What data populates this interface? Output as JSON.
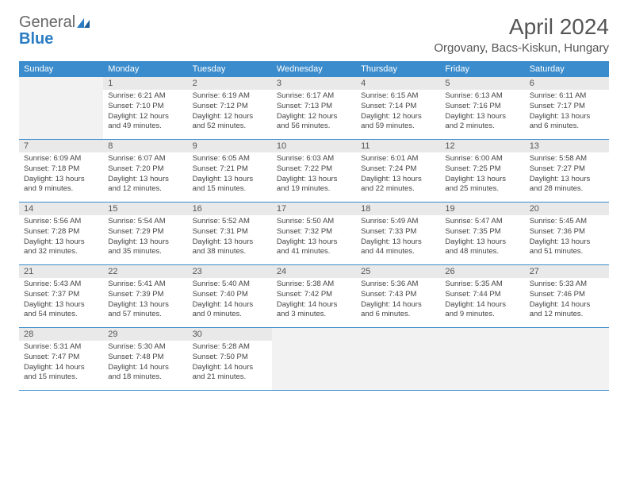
{
  "brand": {
    "text_general": "General",
    "text_blue": "Blue"
  },
  "title": "April 2024",
  "location": "Orgovany, Bacs-Kiskun, Hungary",
  "weekdays": [
    "Sunday",
    "Monday",
    "Tuesday",
    "Wednesday",
    "Thursday",
    "Friday",
    "Saturday"
  ],
  "colors": {
    "header_bg": "#3b8ccc",
    "header_text": "#ffffff",
    "daynum_bg": "#e9e9e9",
    "empty_bg": "#f2f2f2",
    "text": "#444444",
    "rule": "#3b8ccc"
  },
  "weeks": [
    [
      {
        "n": "",
        "empty": true
      },
      {
        "n": "1",
        "sr": "Sunrise: 6:21 AM",
        "ss": "Sunset: 7:10 PM",
        "d1": "Daylight: 12 hours",
        "d2": "and 49 minutes."
      },
      {
        "n": "2",
        "sr": "Sunrise: 6:19 AM",
        "ss": "Sunset: 7:12 PM",
        "d1": "Daylight: 12 hours",
        "d2": "and 52 minutes."
      },
      {
        "n": "3",
        "sr": "Sunrise: 6:17 AM",
        "ss": "Sunset: 7:13 PM",
        "d1": "Daylight: 12 hours",
        "d2": "and 56 minutes."
      },
      {
        "n": "4",
        "sr": "Sunrise: 6:15 AM",
        "ss": "Sunset: 7:14 PM",
        "d1": "Daylight: 12 hours",
        "d2": "and 59 minutes."
      },
      {
        "n": "5",
        "sr": "Sunrise: 6:13 AM",
        "ss": "Sunset: 7:16 PM",
        "d1": "Daylight: 13 hours",
        "d2": "and 2 minutes."
      },
      {
        "n": "6",
        "sr": "Sunrise: 6:11 AM",
        "ss": "Sunset: 7:17 PM",
        "d1": "Daylight: 13 hours",
        "d2": "and 6 minutes."
      }
    ],
    [
      {
        "n": "7",
        "sr": "Sunrise: 6:09 AM",
        "ss": "Sunset: 7:18 PM",
        "d1": "Daylight: 13 hours",
        "d2": "and 9 minutes."
      },
      {
        "n": "8",
        "sr": "Sunrise: 6:07 AM",
        "ss": "Sunset: 7:20 PM",
        "d1": "Daylight: 13 hours",
        "d2": "and 12 minutes."
      },
      {
        "n": "9",
        "sr": "Sunrise: 6:05 AM",
        "ss": "Sunset: 7:21 PM",
        "d1": "Daylight: 13 hours",
        "d2": "and 15 minutes."
      },
      {
        "n": "10",
        "sr": "Sunrise: 6:03 AM",
        "ss": "Sunset: 7:22 PM",
        "d1": "Daylight: 13 hours",
        "d2": "and 19 minutes."
      },
      {
        "n": "11",
        "sr": "Sunrise: 6:01 AM",
        "ss": "Sunset: 7:24 PM",
        "d1": "Daylight: 13 hours",
        "d2": "and 22 minutes."
      },
      {
        "n": "12",
        "sr": "Sunrise: 6:00 AM",
        "ss": "Sunset: 7:25 PM",
        "d1": "Daylight: 13 hours",
        "d2": "and 25 minutes."
      },
      {
        "n": "13",
        "sr": "Sunrise: 5:58 AM",
        "ss": "Sunset: 7:27 PM",
        "d1": "Daylight: 13 hours",
        "d2": "and 28 minutes."
      }
    ],
    [
      {
        "n": "14",
        "sr": "Sunrise: 5:56 AM",
        "ss": "Sunset: 7:28 PM",
        "d1": "Daylight: 13 hours",
        "d2": "and 32 minutes."
      },
      {
        "n": "15",
        "sr": "Sunrise: 5:54 AM",
        "ss": "Sunset: 7:29 PM",
        "d1": "Daylight: 13 hours",
        "d2": "and 35 minutes."
      },
      {
        "n": "16",
        "sr": "Sunrise: 5:52 AM",
        "ss": "Sunset: 7:31 PM",
        "d1": "Daylight: 13 hours",
        "d2": "and 38 minutes."
      },
      {
        "n": "17",
        "sr": "Sunrise: 5:50 AM",
        "ss": "Sunset: 7:32 PM",
        "d1": "Daylight: 13 hours",
        "d2": "and 41 minutes."
      },
      {
        "n": "18",
        "sr": "Sunrise: 5:49 AM",
        "ss": "Sunset: 7:33 PM",
        "d1": "Daylight: 13 hours",
        "d2": "and 44 minutes."
      },
      {
        "n": "19",
        "sr": "Sunrise: 5:47 AM",
        "ss": "Sunset: 7:35 PM",
        "d1": "Daylight: 13 hours",
        "d2": "and 48 minutes."
      },
      {
        "n": "20",
        "sr": "Sunrise: 5:45 AM",
        "ss": "Sunset: 7:36 PM",
        "d1": "Daylight: 13 hours",
        "d2": "and 51 minutes."
      }
    ],
    [
      {
        "n": "21",
        "sr": "Sunrise: 5:43 AM",
        "ss": "Sunset: 7:37 PM",
        "d1": "Daylight: 13 hours",
        "d2": "and 54 minutes."
      },
      {
        "n": "22",
        "sr": "Sunrise: 5:41 AM",
        "ss": "Sunset: 7:39 PM",
        "d1": "Daylight: 13 hours",
        "d2": "and 57 minutes."
      },
      {
        "n": "23",
        "sr": "Sunrise: 5:40 AM",
        "ss": "Sunset: 7:40 PM",
        "d1": "Daylight: 14 hours",
        "d2": "and 0 minutes."
      },
      {
        "n": "24",
        "sr": "Sunrise: 5:38 AM",
        "ss": "Sunset: 7:42 PM",
        "d1": "Daylight: 14 hours",
        "d2": "and 3 minutes."
      },
      {
        "n": "25",
        "sr": "Sunrise: 5:36 AM",
        "ss": "Sunset: 7:43 PM",
        "d1": "Daylight: 14 hours",
        "d2": "and 6 minutes."
      },
      {
        "n": "26",
        "sr": "Sunrise: 5:35 AM",
        "ss": "Sunset: 7:44 PM",
        "d1": "Daylight: 14 hours",
        "d2": "and 9 minutes."
      },
      {
        "n": "27",
        "sr": "Sunrise: 5:33 AM",
        "ss": "Sunset: 7:46 PM",
        "d1": "Daylight: 14 hours",
        "d2": "and 12 minutes."
      }
    ],
    [
      {
        "n": "28",
        "sr": "Sunrise: 5:31 AM",
        "ss": "Sunset: 7:47 PM",
        "d1": "Daylight: 14 hours",
        "d2": "and 15 minutes."
      },
      {
        "n": "29",
        "sr": "Sunrise: 5:30 AM",
        "ss": "Sunset: 7:48 PM",
        "d1": "Daylight: 14 hours",
        "d2": "and 18 minutes."
      },
      {
        "n": "30",
        "sr": "Sunrise: 5:28 AM",
        "ss": "Sunset: 7:50 PM",
        "d1": "Daylight: 14 hours",
        "d2": "and 21 minutes."
      },
      {
        "n": "",
        "empty": true
      },
      {
        "n": "",
        "empty": true
      },
      {
        "n": "",
        "empty": true
      },
      {
        "n": "",
        "empty": true
      }
    ]
  ]
}
